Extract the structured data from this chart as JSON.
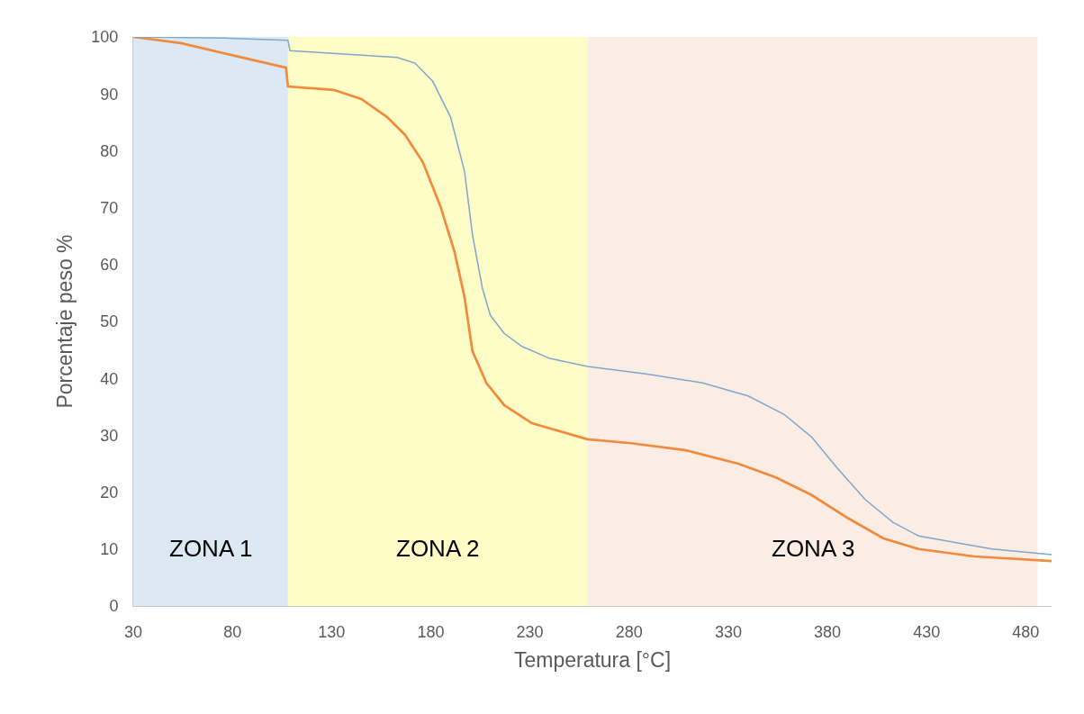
{
  "chart_data": {
    "type": "line",
    "xlabel": "Temperatura [°C]",
    "ylabel": "Porcentaje peso %",
    "xlim": [
      30,
      493
    ],
    "xticks": [
      30,
      80,
      130,
      180,
      230,
      280,
      330,
      380,
      430,
      480
    ],
    "ylim": [
      0,
      100
    ],
    "yticks": [
      0,
      10,
      20,
      30,
      40,
      50,
      60,
      70,
      80,
      90,
      100
    ],
    "grid": false,
    "marker": "none",
    "line_style": "solid",
    "bands": [
      {
        "axis": "x",
        "from": 30,
        "to": 108,
        "label": "ZONA 1",
        "color": "#dce8f4"
      },
      {
        "axis": "x",
        "from": 108,
        "to": 259,
        "label": "ZONA 2",
        "color": "#fefdc8"
      },
      {
        "axis": "x",
        "from": 259,
        "to": 486,
        "label": "ZONA 3",
        "color": "#fbede4"
      }
    ],
    "series": [
      {
        "color": "#7fa7cc",
        "x": [
          30,
          76,
          108,
          109,
          163,
          172,
          181,
          190,
          197,
          201,
          206,
          210,
          217,
          226,
          240,
          259,
          290,
          317,
          340,
          358,
          372,
          385,
          399,
          413,
          426,
          445,
          463,
          493
        ],
        "values": [
          100,
          99.8,
          99.4,
          97.6,
          96.4,
          95.4,
          92.2,
          85.9,
          76.4,
          65.3,
          55.9,
          51.1,
          47.9,
          45.6,
          43.5,
          42.1,
          40.7,
          39.2,
          36.9,
          33.7,
          29.7,
          24.2,
          18.7,
          14.7,
          12.3,
          11.1,
          10,
          9
        ]
      },
      {
        "color": "#f08a3c",
        "x": [
          30,
          54,
          81,
          107,
          108,
          131,
          145,
          158,
          167,
          176,
          185,
          192,
          197,
          201,
          208,
          217,
          231,
          259,
          281,
          308,
          335,
          354,
          372,
          390,
          408,
          426,
          454,
          493
        ],
        "values": [
          100,
          98.9,
          96.7,
          94.6,
          91.3,
          90.7,
          89.1,
          85.9,
          82.8,
          78,
          70.1,
          62.2,
          54.3,
          44.8,
          39.2,
          35.3,
          32.1,
          29.3,
          28.6,
          27.4,
          25,
          22.6,
          19.5,
          15.5,
          11.9,
          10,
          8.7,
          7.9
        ]
      }
    ]
  }
}
